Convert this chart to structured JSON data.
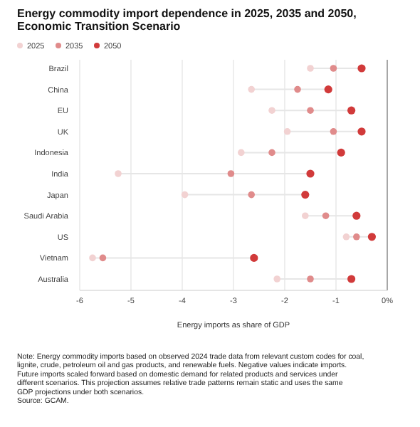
{
  "chart_data": {
    "type": "scatter",
    "orientation": "horizontal",
    "title": "Energy commodity import dependence in 2025, 2035 and 2050, Economic Transition Scenario",
    "xlabel": "Energy imports as share of GDP",
    "categories": [
      "Brazil",
      "China",
      "EU",
      "UK",
      "Indonesia",
      "India",
      "Japan",
      "Saudi Arabia",
      "US",
      "Vietnam",
      "Australia"
    ],
    "series": [
      {
        "name": "2025",
        "color": "#f2d2d2",
        "values": [
          -1.5,
          -2.65,
          -2.25,
          -1.95,
          -2.85,
          -5.25,
          -3.95,
          -1.6,
          -0.8,
          -5.75,
          -2.15
        ]
      },
      {
        "name": "2035",
        "color": "#e08b8b",
        "values": [
          -1.05,
          -1.75,
          -1.5,
          -1.05,
          -2.25,
          -3.05,
          -2.65,
          -1.2,
          -0.6,
          -5.55,
          -1.5
        ]
      },
      {
        "name": "2050",
        "color": "#d13a3a",
        "values": [
          -0.5,
          -1.15,
          -0.7,
          -0.5,
          -0.9,
          -1.5,
          -1.6,
          -0.6,
          -0.3,
          -2.6,
          -0.7
        ]
      }
    ],
    "xlim": [
      -6,
      0
    ],
    "xticks": [
      -6,
      -5,
      -4,
      -3,
      -2,
      -1,
      {
        "value": 0,
        "label": "0%"
      }
    ],
    "grid": "x",
    "legend": "top left",
    "marker": "circle",
    "annotations": [
      "Note: Energy commodity imports based on observed 2024 trade data from relevant custom codes for coal, lignite, crude, petroleum oil and gas products, and renewable fuels. Negative values indicate imports. Future imports scaled forward based on domestic demand for related products and services under different scenarios. This projection assumes relative trade patterns remain static and uses the same GDP projections under both scenarios.",
      "Source: GCAM."
    ]
  }
}
